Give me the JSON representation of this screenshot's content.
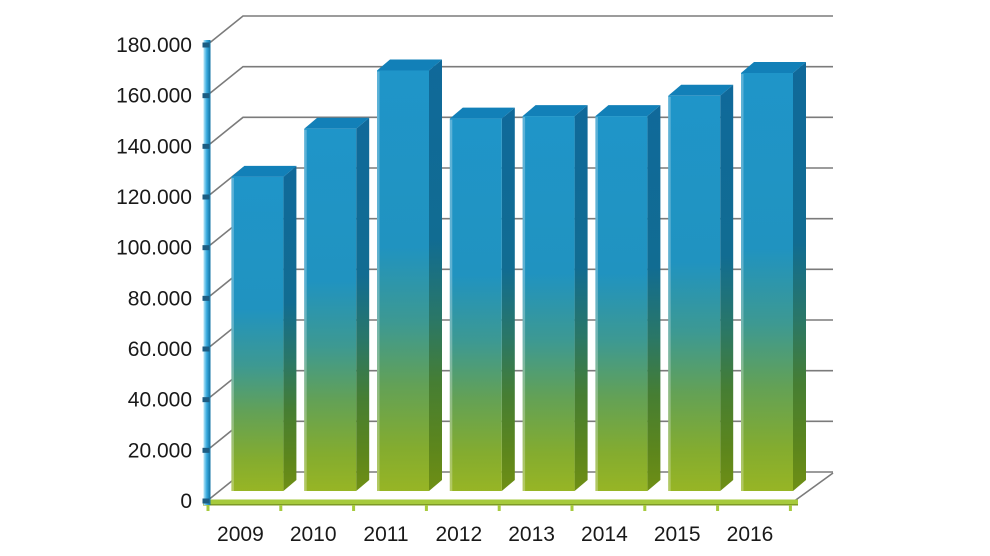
{
  "chart_data": {
    "type": "bar",
    "style": "3d-column",
    "title": "",
    "xlabel": "",
    "ylabel": "",
    "categories": [
      "2009",
      "2010",
      "2011",
      "2012",
      "2013",
      "2014",
      "2015",
      "2016"
    ],
    "series": [
      {
        "name": "value",
        "values": [
          124000,
          143000,
          166000,
          147000,
          148000,
          148000,
          156000,
          165000
        ]
      }
    ],
    "ylim": [
      0,
      180000
    ],
    "ytick_step": 20000,
    "ytick_labels": [
      "0",
      "20.000",
      "40.000",
      "60.000",
      "80.000",
      "100.000",
      "120.000",
      "140.000",
      "160.000",
      "180.000"
    ],
    "grid": true,
    "legend_position": "none",
    "number_format": "dot-thousands-separator"
  },
  "colors": {
    "background": "#ffffff",
    "gridline": "#7b7b7b",
    "text": "#191919",
    "bar_top_face": "#1280b8",
    "bar_front_gradient": [
      "#1f95c9",
      "#2093c0",
      "#3d9992",
      "#63a156",
      "#84ac2f",
      "#97b525"
    ],
    "bar_side_gradient": [
      "#10699a",
      "#116c92",
      "#2a7767",
      "#467e33",
      "#5d861c",
      "#6f8f15"
    ],
    "bar_highlight": "#ffffff",
    "axis_gradient": [
      "#b7e7f8",
      "#3aabdf",
      "#0f6fa0"
    ],
    "axis_tick": "#1c5c82",
    "baseline": "#a6ca3c",
    "baseline_edge": "#7d9926"
  }
}
